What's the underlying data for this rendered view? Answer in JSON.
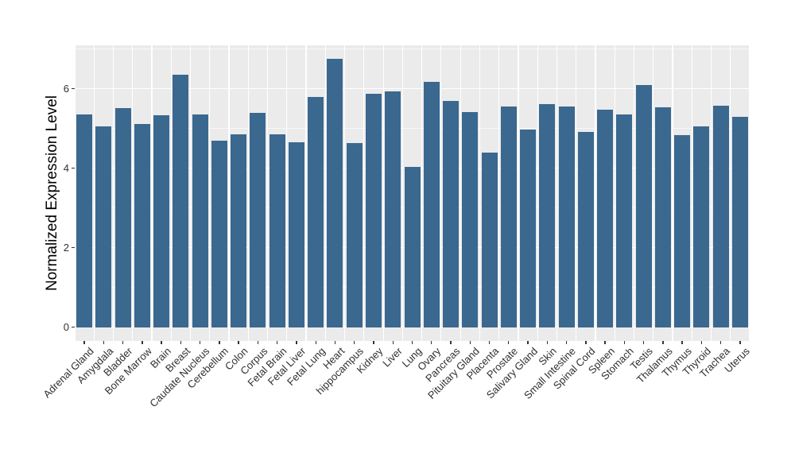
{
  "chart_data": {
    "type": "bar",
    "title": "",
    "xlabel": "",
    "ylabel": "Normalized Expression Level",
    "ylim": [
      0,
      7.09
    ],
    "yticks": [
      0,
      2,
      4,
      6
    ],
    "yticks_minor": [
      1,
      3,
      5,
      7
    ],
    "grid": true,
    "legend": false,
    "bar_color": "#3A688F",
    "panel_bg": "#EBEBEB",
    "grid_color": "#FFFFFF",
    "tick_color": "#333333",
    "categories": [
      "Adrenal Gland",
      "Amygdala",
      "Bladder",
      "Bone Marrow",
      "Brain",
      "Breast",
      "Caudate Nucleus",
      "Cerebellum",
      "Colon",
      "Corpus",
      "Fetal Brain",
      "Fetal Liver",
      "Fetal Lung",
      "Heart",
      "hippocampus",
      "Kidney",
      "Liver",
      "Lung",
      "Ovary",
      "Pancreas",
      "Pituitary Gland",
      "Placenta",
      "Prostate",
      "Salivary Gland",
      "Skin",
      "Small Intestine",
      "Spinal Cord",
      "Spleen",
      "Stomach",
      "Testis",
      "Thalamus",
      "Thymus",
      "Thyroid",
      "Trachea",
      "Uterus"
    ],
    "values": [
      5.36,
      5.05,
      5.52,
      5.12,
      5.33,
      6.36,
      5.35,
      4.7,
      4.86,
      5.4,
      4.86,
      4.65,
      5.79,
      6.75,
      4.64,
      5.88,
      5.94,
      4.03,
      6.18,
      5.7,
      5.41,
      4.4,
      5.56,
      4.97,
      5.62,
      5.56,
      4.92,
      5.48,
      5.36,
      6.09,
      5.53,
      4.84,
      5.06,
      5.57,
      5.3
    ]
  }
}
